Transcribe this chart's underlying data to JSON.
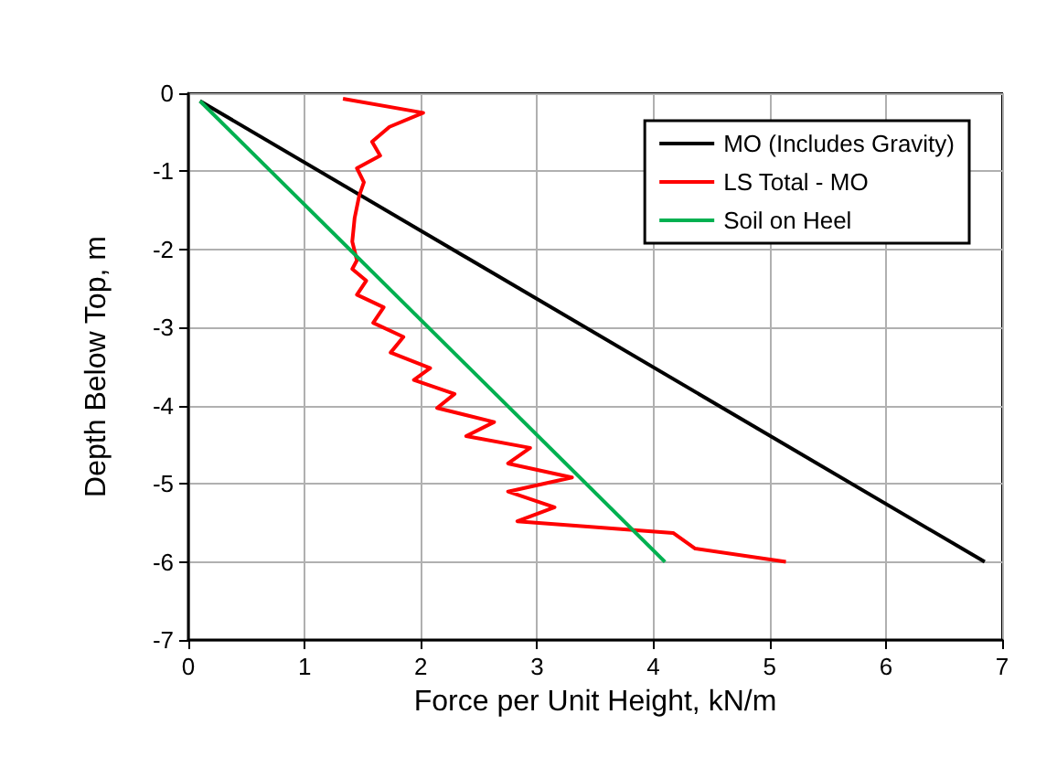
{
  "chart_data": {
    "type": "line",
    "xlabel": "Force per Unit Height, kN/m",
    "ylabel": "Depth Below Top, m",
    "xlim": [
      0,
      7
    ],
    "xticks": [
      0,
      1,
      2,
      3,
      4,
      5,
      6,
      7
    ],
    "ylim": [
      -7,
      0
    ],
    "yticks": [
      -7,
      -6,
      -5,
      -4,
      -3,
      -2,
      -1,
      0
    ],
    "grid": true,
    "legend": "top right",
    "marker": "none",
    "line_style": "solid",
    "series": [
      {
        "name": "MO (Includes Gravity)",
        "color": "#000000",
        "x": [
          0.1,
          6.85
        ],
        "values": [
          -0.1,
          -6
        ]
      },
      {
        "name": "LS Total - MO",
        "color": "#ff0000",
        "x": [
          1.33,
          2.02,
          1.73,
          1.58,
          1.65,
          1.45,
          1.51,
          1.47,
          1.43,
          1.41,
          1.45,
          1.41,
          1.53,
          1.45,
          1.68,
          1.59,
          1.85,
          1.74,
          2.08,
          1.94,
          2.29,
          2.14,
          2.63,
          2.39,
          2.94,
          2.75,
          3.3,
          2.75,
          3.15,
          2.83,
          4.17,
          4.36,
          5.14
        ],
        "values": [
          -0.07,
          -0.25,
          -0.43,
          -0.62,
          -0.8,
          -0.96,
          -1.14,
          -1.31,
          -1.6,
          -1.9,
          -2.14,
          -2.25,
          -2.4,
          -2.58,
          -2.74,
          -2.94,
          -3.12,
          -3.32,
          -3.52,
          -3.67,
          -3.85,
          -4.03,
          -4.21,
          -4.39,
          -4.54,
          -4.74,
          -4.92,
          -5.1,
          -5.3,
          -5.48,
          -5.63,
          -5.83,
          -6
        ]
      },
      {
        "name": "Soil on Heel",
        "color": "#00b050",
        "x": [
          0.1,
          4.1
        ],
        "values": [
          -0.1,
          -6
        ]
      }
    ]
  }
}
